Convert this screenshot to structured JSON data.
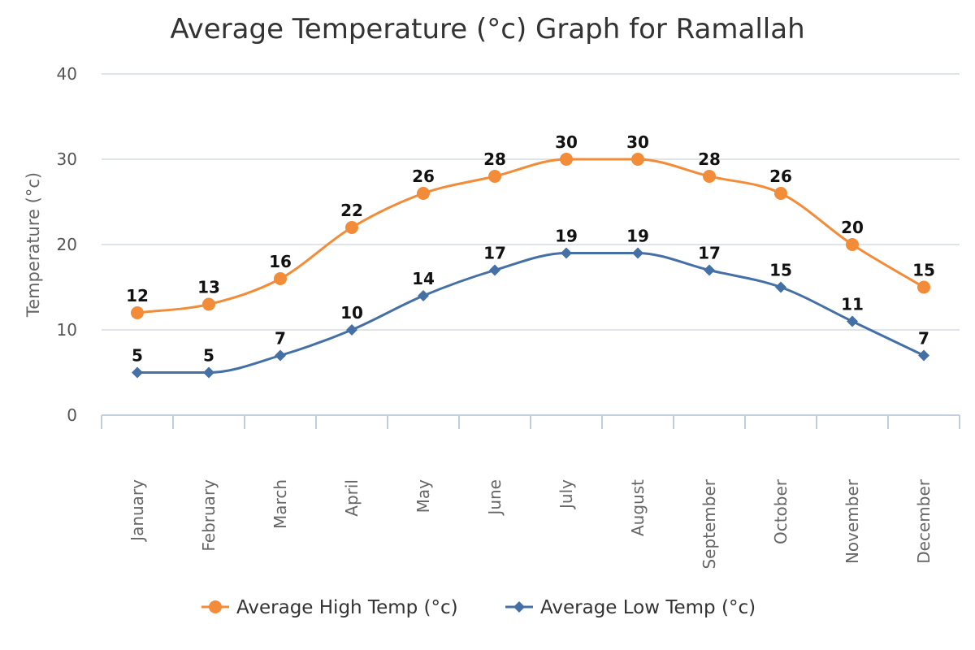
{
  "chart_data": {
    "type": "line",
    "title": "Average Temperature (°c) Graph for Ramallah",
    "ylabel": "Temperature (°c)",
    "xlabel": "",
    "ylim": [
      0,
      40
    ],
    "yticks": [
      "0",
      "10",
      "20",
      "30",
      "40"
    ],
    "grid": true,
    "legend_position": "bottom-center",
    "categories": [
      "January",
      "February",
      "March",
      "April",
      "May",
      "June",
      "July",
      "August",
      "September",
      "October",
      "November",
      "December"
    ],
    "series": [
      {
        "name": "Average High Temp (°c)",
        "color": "#f28c38",
        "marker": "circle",
        "values": [
          12,
          13,
          16,
          22,
          26,
          28,
          30,
          30,
          28,
          26,
          20,
          15
        ]
      },
      {
        "name": "Average Low Temp (°c)",
        "color": "#4470a6",
        "marker": "diamond",
        "values": [
          5,
          5,
          7,
          10,
          14,
          17,
          19,
          19,
          17,
          15,
          11,
          7
        ]
      }
    ]
  }
}
